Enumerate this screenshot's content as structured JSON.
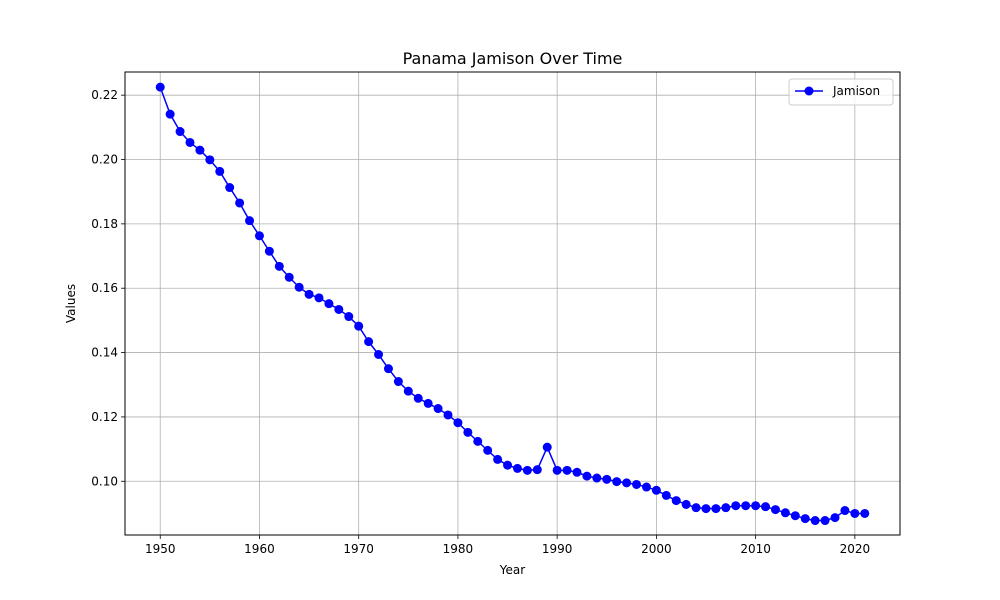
{
  "chart_data": {
    "type": "line",
    "title": "Panama Jamison Over Time",
    "xlabel": "Year",
    "ylabel": "Values",
    "xlim": [
      1946.45,
      2024.55
    ],
    "ylim": [
      0.0833,
      0.2272
    ],
    "xticks": [
      1950,
      1960,
      1970,
      1980,
      1990,
      2000,
      2010,
      2020
    ],
    "yticks": [
      0.1,
      0.12,
      0.14,
      0.16,
      0.18,
      0.2,
      0.22
    ],
    "ytick_labels": [
      "0.10",
      "0.12",
      "0.14",
      "0.16",
      "0.18",
      "0.20",
      "0.22"
    ],
    "grid": true,
    "legend_position": "top-right",
    "series": [
      {
        "name": "Jamison",
        "color": "#0000ff",
        "marker": "circle",
        "x": [
          1950,
          1951,
          1952,
          1953,
          1954,
          1955,
          1956,
          1957,
          1958,
          1959,
          1960,
          1961,
          1962,
          1963,
          1964,
          1965,
          1966,
          1967,
          1968,
          1969,
          1970,
          1971,
          1972,
          1973,
          1974,
          1975,
          1976,
          1977,
          1978,
          1979,
          1980,
          1981,
          1982,
          1983,
          1984,
          1985,
          1986,
          1987,
          1988,
          1989,
          1990,
          1991,
          1992,
          1993,
          1994,
          1995,
          1996,
          1997,
          1998,
          1999,
          2000,
          2001,
          2002,
          2003,
          2004,
          2005,
          2006,
          2007,
          2008,
          2009,
          2010,
          2011,
          2012,
          2013,
          2014,
          2015,
          2016,
          2017,
          2018,
          2019,
          2020,
          2021
        ],
        "values": [
          0.2225,
          0.2141,
          0.2087,
          0.2053,
          0.2029,
          0.1999,
          0.1963,
          0.1913,
          0.1865,
          0.181,
          0.1763,
          0.1715,
          0.1668,
          0.1634,
          0.1603,
          0.1581,
          0.157,
          0.1552,
          0.1534,
          0.1512,
          0.1482,
          0.1434,
          0.1394,
          0.135,
          0.131,
          0.128,
          0.1258,
          0.1242,
          0.1226,
          0.1206,
          0.1182,
          0.1152,
          0.1124,
          0.1096,
          0.1068,
          0.105,
          0.104,
          0.1034,
          0.1036,
          0.1106,
          0.1034,
          0.1034,
          0.1028,
          0.1016,
          0.101,
          0.1006,
          0.0999,
          0.0995,
          0.099,
          0.0982,
          0.0972,
          0.0956,
          0.094,
          0.0928,
          0.0918,
          0.0915,
          0.0915,
          0.0918,
          0.0924,
          0.0924,
          0.0924,
          0.0921,
          0.0912,
          0.0902,
          0.0893,
          0.0884,
          0.0878,
          0.0878,
          0.0887,
          0.0909,
          0.09,
          0.09
        ]
      }
    ]
  }
}
